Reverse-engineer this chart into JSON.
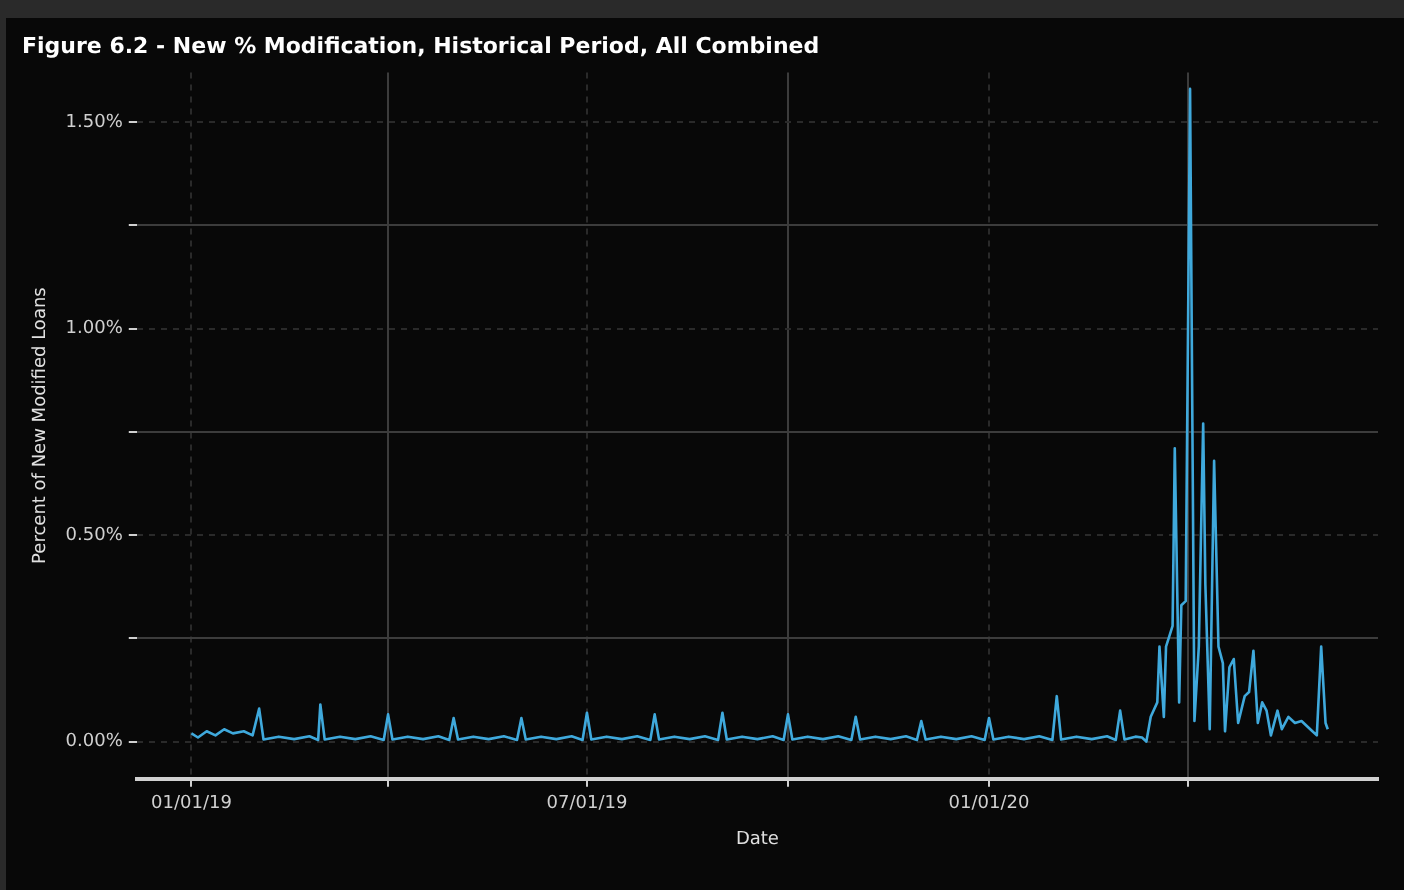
{
  "chart_data": {
    "type": "line",
    "title": "Figure 6.2 - New % Modification, Historical Period, All Combined",
    "xlabel": "Date",
    "ylabel": "Percent of New Modified Loans",
    "xlim": [
      "2018-12-07",
      "2020-06-27"
    ],
    "xticks": [
      {
        "value": "2019-01-01",
        "label": "01/01/19"
      },
      {
        "value": "2019-04-01",
        "label": null
      },
      {
        "value": "2019-07-01",
        "label": "07/01/19"
      },
      {
        "value": "2019-10-01",
        "label": null
      },
      {
        "value": "2020-01-01",
        "label": "01/01/20"
      },
      {
        "value": "2020-04-01",
        "label": null
      }
    ],
    "ylim": [
      -0.09,
      1.62
    ],
    "yticks": [
      {
        "value": 0,
        "label": "0.00%"
      },
      {
        "value": 0.25,
        "label": null
      },
      {
        "value": 0.5,
        "label": "0.50%"
      },
      {
        "value": 0.75,
        "label": null
      },
      {
        "value": 1,
        "label": "1.00%"
      },
      {
        "value": 1.25,
        "label": null
      },
      {
        "value": 1.5,
        "label": "1.50%"
      }
    ],
    "grid": true,
    "legend": false,
    "marker": "none",
    "line_style": "solid",
    "series": [
      {
        "color": "#3fa9dc",
        "x": [
          "2019-01-01",
          "2019-01-04",
          "2019-01-08",
          "2019-01-12",
          "2019-01-16",
          "2019-01-20",
          "2019-01-25",
          "2019-01-29",
          "2019-02-01",
          "2019-02-03",
          "2019-02-10",
          "2019-02-17",
          "2019-02-24",
          "2019-02-28",
          "2019-03-01",
          "2019-03-03",
          "2019-03-10",
          "2019-03-17",
          "2019-03-24",
          "2019-03-30",
          "2019-04-01",
          "2019-04-03",
          "2019-04-10",
          "2019-04-17",
          "2019-04-24",
          "2019-04-29",
          "2019-05-01",
          "2019-05-03",
          "2019-05-10",
          "2019-05-17",
          "2019-05-24",
          "2019-05-30",
          "2019-06-01",
          "2019-06-03",
          "2019-06-10",
          "2019-06-17",
          "2019-06-24",
          "2019-06-29",
          "2019-07-01",
          "2019-07-03",
          "2019-07-10",
          "2019-07-17",
          "2019-07-24",
          "2019-07-30",
          "2019-08-01",
          "2019-08-03",
          "2019-08-10",
          "2019-08-17",
          "2019-08-24",
          "2019-08-30",
          "2019-09-01",
          "2019-09-03",
          "2019-09-10",
          "2019-09-17",
          "2019-09-24",
          "2019-09-29",
          "2019-10-01",
          "2019-10-03",
          "2019-10-10",
          "2019-10-17",
          "2019-10-24",
          "2019-10-30",
          "2019-11-01",
          "2019-11-03",
          "2019-11-10",
          "2019-11-17",
          "2019-11-24",
          "2019-11-29",
          "2019-12-01",
          "2019-12-03",
          "2019-12-10",
          "2019-12-17",
          "2019-12-24",
          "2019-12-30",
          "2020-01-01",
          "2020-01-03",
          "2020-01-10",
          "2020-01-17",
          "2020-01-24",
          "2020-01-30",
          "2020-02-01",
          "2020-02-03",
          "2020-02-10",
          "2020-02-17",
          "2020-02-24",
          "2020-02-28",
          "2020-03-01",
          "2020-03-03",
          "2020-03-08",
          "2020-03-11",
          "2020-03-13",
          "2020-03-15",
          "2020-03-18",
          "2020-03-19",
          "2020-03-21",
          "2020-03-22",
          "2020-03-25",
          "2020-03-26",
          "2020-03-28",
          "2020-03-29",
          "2020-03-31",
          "2020-04-02",
          "2020-04-04",
          "2020-04-06",
          "2020-04-08",
          "2020-04-09",
          "2020-04-11",
          "2020-04-13",
          "2020-04-15",
          "2020-04-17",
          "2020-04-18",
          "2020-04-20",
          "2020-04-22",
          "2020-04-24",
          "2020-04-27",
          "2020-04-29",
          "2020-05-01",
          "2020-05-03",
          "2020-05-05",
          "2020-05-07",
          "2020-05-09",
          "2020-05-12",
          "2020-05-14",
          "2020-05-17",
          "2020-05-20",
          "2020-05-23",
          "2020-05-27",
          "2020-05-30",
          "2020-06-01",
          "2020-06-03",
          "2020-06-04"
        ],
        "values": [
          0.02,
          0.01,
          0.025,
          0.015,
          0.03,
          0.02,
          0.025,
          0.015,
          0.08,
          0.005,
          0.012,
          0.006,
          0.013,
          0.004,
          0.09,
          0.005,
          0.012,
          0.006,
          0.013,
          0.004,
          0.066,
          0.005,
          0.012,
          0.006,
          0.013,
          0.004,
          0.057,
          0.005,
          0.012,
          0.006,
          0.013,
          0.004,
          0.057,
          0.005,
          0.012,
          0.006,
          0.013,
          0.004,
          0.07,
          0.005,
          0.012,
          0.006,
          0.013,
          0.004,
          0.066,
          0.005,
          0.012,
          0.006,
          0.013,
          0.004,
          0.07,
          0.005,
          0.012,
          0.006,
          0.013,
          0.004,
          0.066,
          0.005,
          0.012,
          0.006,
          0.013,
          0.004,
          0.06,
          0.005,
          0.012,
          0.006,
          0.013,
          0.004,
          0.05,
          0.005,
          0.012,
          0.006,
          0.013,
          0.004,
          0.057,
          0.005,
          0.012,
          0.006,
          0.013,
          0.004,
          0.11,
          0.005,
          0.012,
          0.006,
          0.013,
          0.004,
          0.075,
          0.005,
          0.012,
          0.01,
          0.0,
          0.06,
          0.095,
          0.23,
          0.06,
          0.23,
          0.28,
          0.71,
          0.095,
          0.33,
          0.34,
          1.58,
          0.05,
          0.23,
          0.77,
          0.38,
          0.03,
          0.68,
          0.23,
          0.19,
          0.025,
          0.18,
          0.2,
          0.045,
          0.11,
          0.12,
          0.22,
          0.045,
          0.095,
          0.075,
          0.015,
          0.075,
          0.03,
          0.06,
          0.045,
          0.05,
          0.03,
          0.015,
          0.23,
          0.045,
          0.03
        ]
      }
    ]
  }
}
